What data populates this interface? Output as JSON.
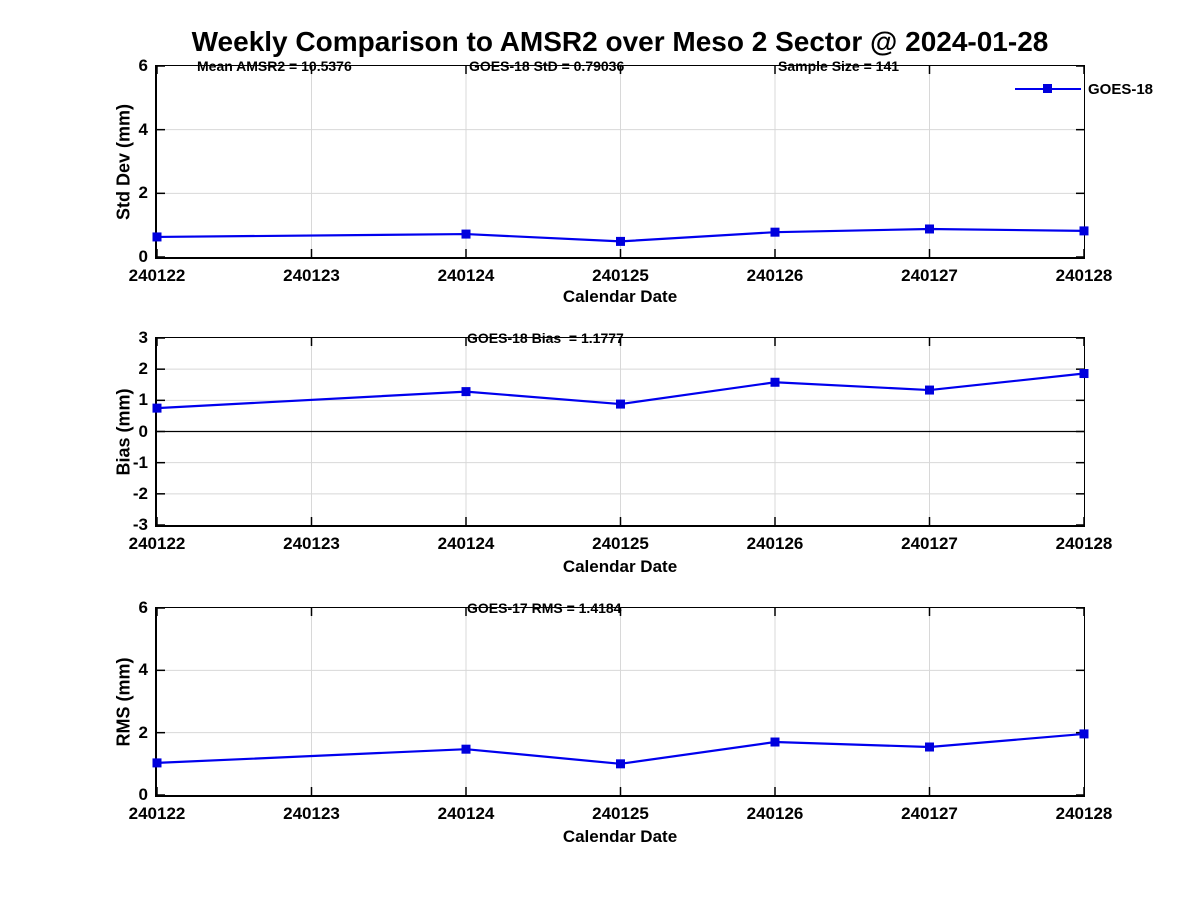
{
  "title": "Weekly Comparison to AMSR2 over Meso 2 Sector @ 2024-01-28",
  "legend": {
    "label": "GOES-18"
  },
  "colors": {
    "series_line": "#0000EE",
    "marker_fill": "#0000DD",
    "grid": "#D8D8D8",
    "axis": "#000000",
    "zero_line": "#000000",
    "background": "#FFFFFF"
  },
  "chart_data": [
    {
      "type": "line",
      "name": "std-dev",
      "ylabel": "Std Dev (mm)",
      "xlabel": "Calendar Date",
      "categories": [
        "240122",
        "240123",
        "240124",
        "240125",
        "240126",
        "240127",
        "240128"
      ],
      "yticks": [
        0,
        2,
        4,
        6
      ],
      "ylim": [
        0,
        6
      ],
      "grid": true,
      "zero_line": false,
      "annotations": [
        "Mean AMSR2 = 10.5376",
        "GOES-18 StD = 0.79036",
        "Sample Size = 141"
      ],
      "legend_label": "GOES-18",
      "series": [
        {
          "name": "GOES-18",
          "x": [
            "240122",
            "240124",
            "240125",
            "240126",
            "240127",
            "240128"
          ],
          "values": [
            0.63,
            0.72,
            0.49,
            0.78,
            0.88,
            0.82
          ]
        }
      ]
    },
    {
      "type": "line",
      "name": "bias",
      "ylabel": "Bias (mm)",
      "xlabel": "Calendar Date",
      "categories": [
        "240122",
        "240123",
        "240124",
        "240125",
        "240126",
        "240127",
        "240128"
      ],
      "yticks": [
        -3,
        -2,
        -1,
        0,
        1,
        2,
        3
      ],
      "ylim": [
        -3,
        3
      ],
      "grid": true,
      "zero_line": true,
      "annotations": [
        "GOES-18 Bias  = 1.1777"
      ],
      "series": [
        {
          "name": "GOES-18",
          "x": [
            "240122",
            "240124",
            "240125",
            "240126",
            "240127",
            "240128"
          ],
          "values": [
            0.75,
            1.28,
            0.88,
            1.58,
            1.33,
            1.86
          ]
        }
      ]
    },
    {
      "type": "line",
      "name": "rms",
      "ylabel": "RMS (mm)",
      "xlabel": "Calendar Date",
      "categories": [
        "240122",
        "240123",
        "240124",
        "240125",
        "240126",
        "240127",
        "240128"
      ],
      "yticks": [
        0,
        2,
        4,
        6
      ],
      "ylim": [
        0,
        6
      ],
      "grid": true,
      "zero_line": false,
      "annotations": [
        "GOES-17 RMS = 1.4184"
      ],
      "series": [
        {
          "name": "GOES-18",
          "x": [
            "240122",
            "240124",
            "240125",
            "240126",
            "240127",
            "240128"
          ],
          "values": [
            1.03,
            1.47,
            1.0,
            1.7,
            1.54,
            1.96
          ]
        }
      ]
    }
  ]
}
